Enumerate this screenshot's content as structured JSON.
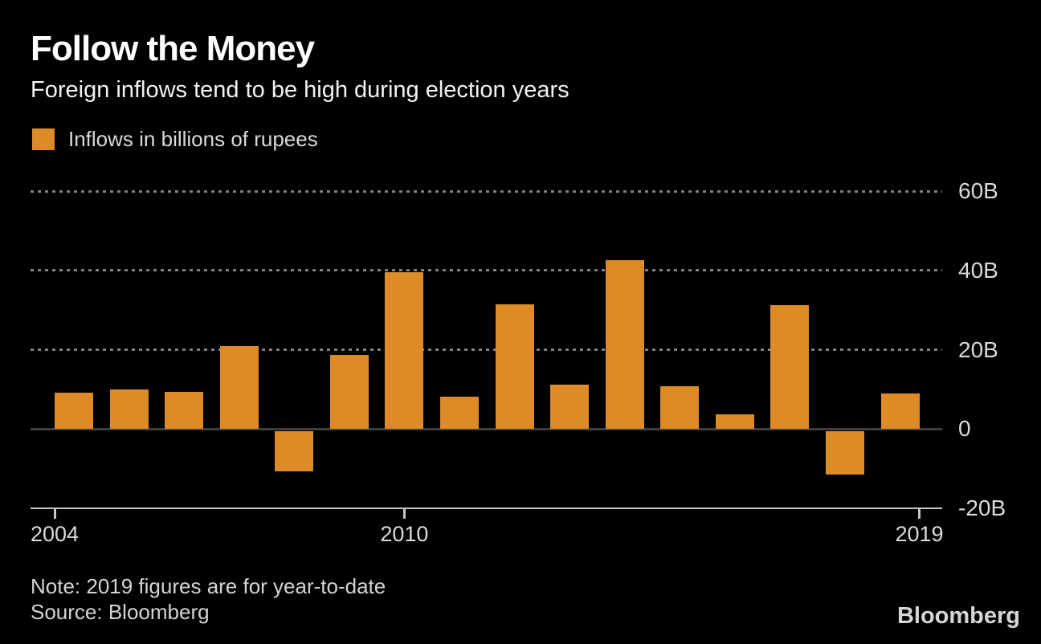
{
  "header": {
    "title": "Follow the Money",
    "subtitle": "Foreign inflows tend to be high during election years"
  },
  "legend": {
    "label": "Inflows in billions of rupees",
    "swatch_color": "#DC8B26"
  },
  "chart_data": {
    "type": "bar",
    "title": "Follow the Money",
    "subtitle": "Foreign inflows tend to be high during election years",
    "unit": "billions of rupees",
    "categories": [
      "2004",
      "2005",
      "2006",
      "2007",
      "2008",
      "2009",
      "2010",
      "2011",
      "2012",
      "2013",
      "2014",
      "2015",
      "2016",
      "2017",
      "2018",
      "2019"
    ],
    "values": [
      9.2,
      10,
      9.4,
      21,
      -10.7,
      18.7,
      39.5,
      8.1,
      31.4,
      11.2,
      42.5,
      10.8,
      3.7,
      31.2,
      -11.5,
      8.9
    ],
    "bar_color": "#DC8B26",
    "ylim": [
      -20,
      60
    ],
    "y_ticks": [
      {
        "value": 60,
        "label": "60B",
        "style": "dotted"
      },
      {
        "value": 40,
        "label": "40B",
        "style": "dotted"
      },
      {
        "value": 20,
        "label": "20B",
        "style": "dotted"
      },
      {
        "value": 0,
        "label": "0",
        "style": "zero"
      },
      {
        "value": -20,
        "label": "-20B",
        "style": "axis"
      }
    ],
    "x_ticks": [
      {
        "label": "2004",
        "index": 0
      },
      {
        "label": "2010",
        "index": 6
      },
      {
        "label": "2019",
        "index": 15
      }
    ],
    "grid": "horizontal-dotted",
    "legend_position": "top-left",
    "legend_entries": [
      "Inflows in billions of rupees"
    ]
  },
  "footer": {
    "note": "Note: 2019 figures are for year-to-date",
    "source": "Source: Bloomberg",
    "logo": "Bloomberg"
  }
}
